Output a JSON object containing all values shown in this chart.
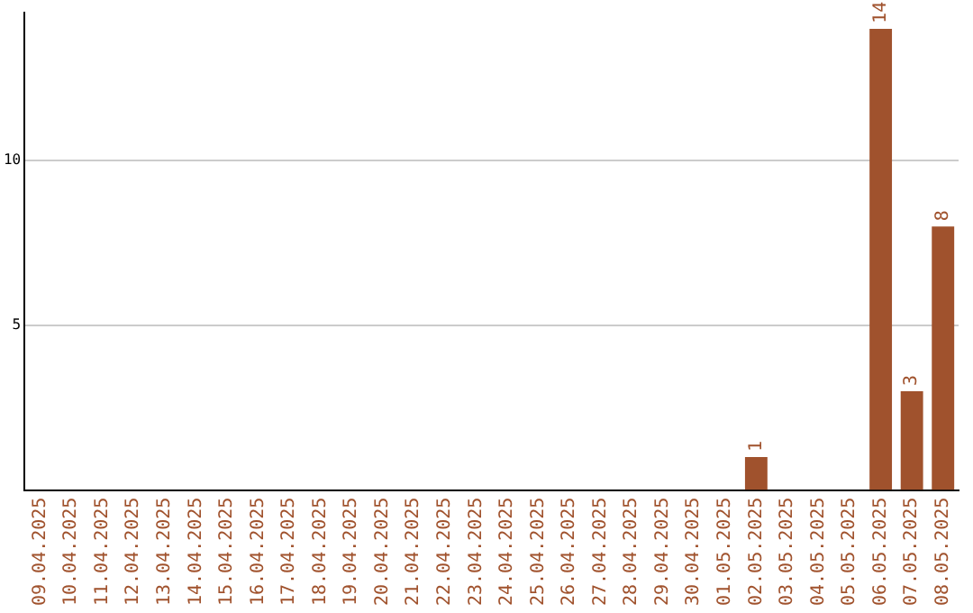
{
  "chart_data": {
    "type": "bar",
    "categories": [
      "09.04.2025",
      "10.04.2025",
      "11.04.2025",
      "12.04.2025",
      "13.04.2025",
      "14.04.2025",
      "15.04.2025",
      "16.04.2025",
      "17.04.2025",
      "18.04.2025",
      "19.04.2025",
      "20.04.2025",
      "21.04.2025",
      "22.04.2025",
      "23.04.2025",
      "24.04.2025",
      "25.04.2025",
      "26.04.2025",
      "27.04.2025",
      "28.04.2025",
      "29.04.2025",
      "30.04.2025",
      "01.05.2025",
      "02.05.2025",
      "03.05.2025",
      "04.05.2025",
      "05.05.2025",
      "06.05.2025",
      "07.05.2025",
      "08.05.2025"
    ],
    "values": [
      0,
      0,
      0,
      0,
      0,
      0,
      0,
      0,
      0,
      0,
      0,
      0,
      0,
      0,
      0,
      0,
      0,
      0,
      0,
      0,
      0,
      0,
      0,
      1,
      0,
      0,
      0,
      14,
      3,
      8
    ],
    "value_labels": [
      null,
      null,
      null,
      null,
      null,
      null,
      null,
      null,
      null,
      null,
      null,
      null,
      null,
      null,
      null,
      null,
      null,
      null,
      null,
      null,
      null,
      null,
      null,
      "1",
      null,
      null,
      null,
      "14",
      "3",
      "8"
    ],
    "color": "#a0522d",
    "ylim": [
      0,
      14.5
    ],
    "yticks": [
      5,
      10
    ],
    "grid": "y",
    "legend": false
  }
}
